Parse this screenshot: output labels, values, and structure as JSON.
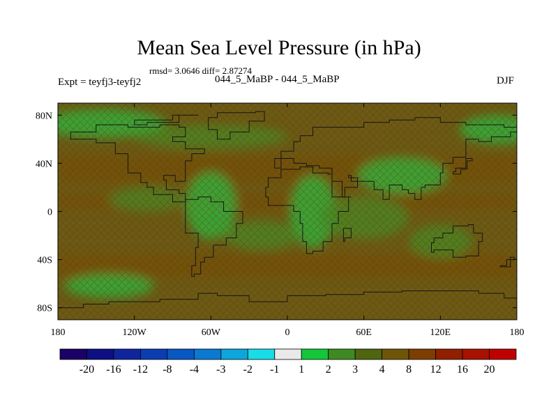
{
  "chart_data": {
    "type": "heatmap",
    "title": "Mean Sea Level Pressure (in hPa)",
    "stats_line": "rmsd= 3.0646 diff= 2.87274",
    "experiment_label": "Expt = teyfj3-teyfj2",
    "experiment_names": "044_5_MaBP - 044_5_MaBP",
    "season": "DJF",
    "x_ticks": [
      "180",
      "120W",
      "60W",
      "0",
      "60E",
      "120E",
      "180"
    ],
    "x_values": [
      -180,
      -120,
      -60,
      0,
      60,
      120,
      180
    ],
    "y_ticks": [
      "80N",
      "40N",
      "0",
      "40S",
      "80S"
    ],
    "y_values": [
      80,
      40,
      0,
      -40,
      -80
    ],
    "xlim": [
      -180,
      180
    ],
    "ylim": [
      -90,
      90
    ],
    "colorbar_labels": [
      "-20",
      "-16",
      "-12",
      "-8",
      "-4",
      "-3",
      "-2",
      "-1",
      "1",
      "2",
      "3",
      "4",
      "8",
      "12",
      "16",
      "20"
    ],
    "colorbar_colors": [
      "#1b0066",
      "#0d0f82",
      "#10259c",
      "#0a3db0",
      "#0858c4",
      "#0a79d0",
      "#0ca5dc",
      "#18dce6",
      "#e9e9e9",
      "#14c63a",
      "#3d8a22",
      "#4f6510",
      "#6e5508",
      "#7e3e02",
      "#902000",
      "#a81200",
      "#c00000"
    ],
    "field_colors": {
      "background": "#6e5a12",
      "lows_brown": "#7a4a08",
      "highs_green": "#2fb83c",
      "mid_green": "#4a8a22",
      "coast_line": "#141414",
      "hatch": "#5a4a2a"
    }
  }
}
